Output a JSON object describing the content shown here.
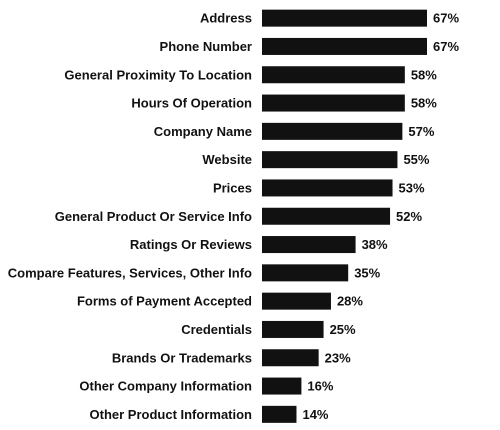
{
  "chart_data": {
    "type": "bar",
    "orientation": "horizontal",
    "title": "",
    "xlabel": "",
    "ylabel": "",
    "xlim": [
      0,
      67
    ],
    "grid": false,
    "legend": "none",
    "bar_color": "#111111",
    "categories": [
      "Address",
      "Phone Number",
      "General Proximity To Location",
      "Hours Of Operation",
      "Company Name",
      "Website",
      "Prices",
      "General Product Or Service Info",
      "Ratings Or Reviews",
      "Compare Features, Services, Other Info",
      "Forms of Payment Accepted",
      "Credentials",
      "Brands Or Trademarks",
      "Other Company Information",
      "Other Product Information"
    ],
    "values": [
      67,
      67,
      58,
      58,
      57,
      55,
      53,
      52,
      38,
      35,
      28,
      25,
      23,
      16,
      14
    ],
    "value_labels": [
      "67%",
      "67%",
      "58%",
      "58%",
      "57%",
      "55%",
      "53%",
      "52%",
      "38%",
      "35%",
      "28%",
      "25%",
      "23%",
      "16%",
      "14%"
    ]
  }
}
